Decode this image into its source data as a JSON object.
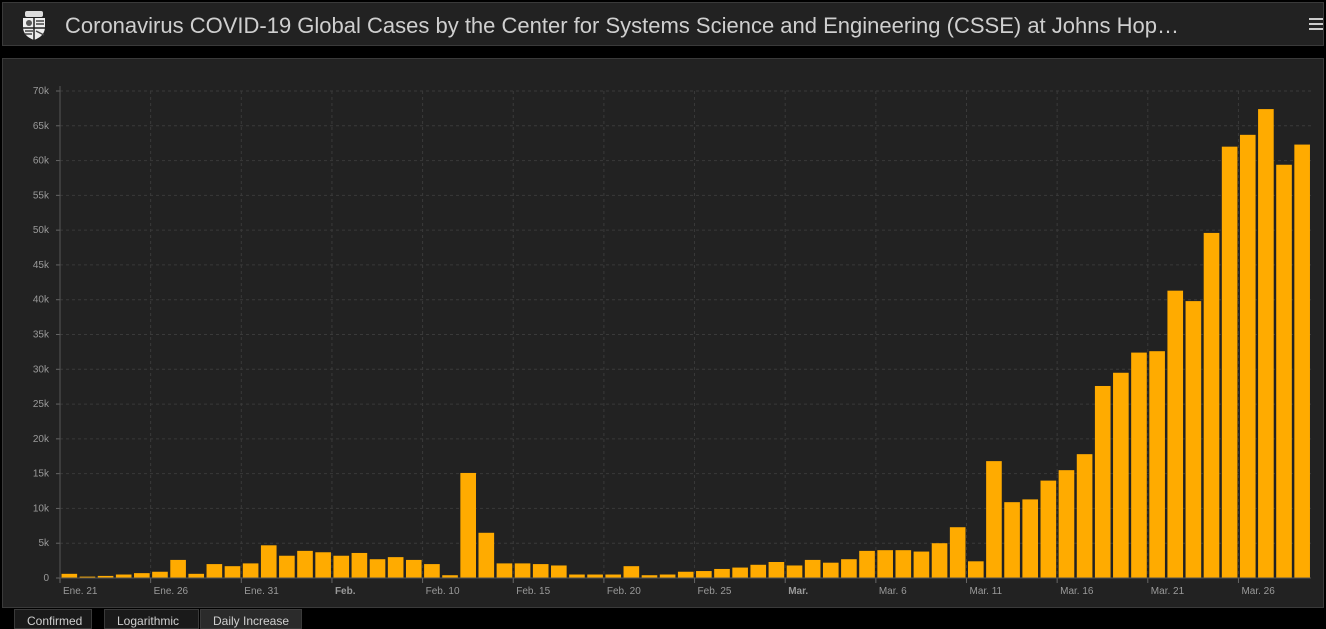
{
  "header": {
    "title": "Coronavirus COVID-19 Global Cases by the Center for Systems Science and Engineering (CSSE) at Johns Hop…",
    "logo_icon": "university-shield-icon",
    "menu_icon": "hamburger-menu-icon"
  },
  "tabs": [
    {
      "label": "Confirmed",
      "active": false
    },
    {
      "label": "Logarithmic",
      "active": false
    },
    {
      "label": "Daily Increase",
      "active": true
    }
  ],
  "chart_data": {
    "type": "bar",
    "title": "",
    "xlabel": "",
    "ylabel": "",
    "start_date": "Jan 21",
    "ylim": [
      0,
      70000
    ],
    "yticks": [
      0,
      5000,
      10000,
      15000,
      20000,
      25000,
      30000,
      35000,
      40000,
      45000,
      50000,
      55000,
      60000,
      65000,
      70000
    ],
    "ytick_labels": [
      "0",
      "5k",
      "10k",
      "15k",
      "20k",
      "25k",
      "30k",
      "35k",
      "40k",
      "45k",
      "50k",
      "55k",
      "60k",
      "65k",
      "70k"
    ],
    "xticks": [
      {
        "day": 0,
        "label": "Ene. 21",
        "bold": false
      },
      {
        "day": 5,
        "label": "Ene. 26",
        "bold": false
      },
      {
        "day": 10,
        "label": "Ene. 31",
        "bold": false
      },
      {
        "day": 11,
        "label": "Feb.",
        "bold": true
      },
      {
        "day": 20,
        "label": "Feb. 10",
        "bold": false
      },
      {
        "day": 25,
        "label": "Feb. 15",
        "bold": false
      },
      {
        "day": 30,
        "label": "Feb. 20",
        "bold": false
      },
      {
        "day": 35,
        "label": "Feb. 25",
        "bold": false
      },
      {
        "day": 40,
        "label": "Mar.",
        "bold": true
      },
      {
        "day": 45,
        "label": "Mar. 6",
        "bold": false
      },
      {
        "day": 50,
        "label": "Mar. 11",
        "bold": false
      },
      {
        "day": 55,
        "label": "Mar. 16",
        "bold": false
      },
      {
        "day": 60,
        "label": "Mar. 21",
        "bold": false
      },
      {
        "day": 65,
        "label": "Mar. 26",
        "bold": false
      }
    ],
    "grid": true,
    "bar_color": "#ffab00",
    "values": [
      600,
      200,
      300,
      500,
      700,
      900,
      2600,
      600,
      2000,
      1700,
      2100,
      4700,
      3200,
      3900,
      3700,
      3200,
      3600,
      2700,
      3000,
      2600,
      2000,
      400,
      15100,
      6500,
      2100,
      2100,
      2000,
      1800,
      500,
      500,
      500,
      1700,
      400,
      500,
      900,
      1000,
      1300,
      1500,
      1900,
      2300,
      1800,
      2600,
      2200,
      2700,
      3900,
      4000,
      4000,
      3800,
      5000,
      7300,
      2400,
      16800,
      10900,
      11300,
      14000,
      15500,
      17800,
      27600,
      29500,
      32400,
      32600,
      41300,
      39800,
      49600,
      62000,
      63700,
      67400,
      59400,
      62300
    ]
  }
}
